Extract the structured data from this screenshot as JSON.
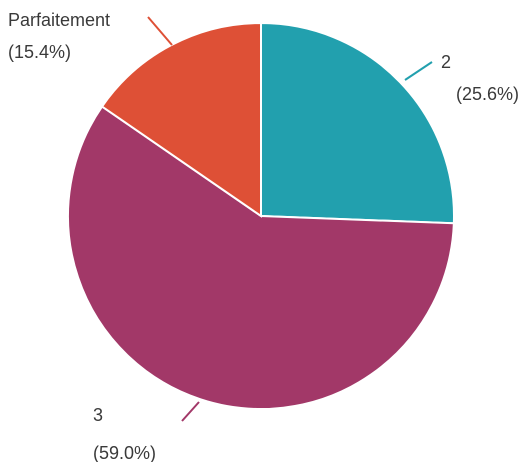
{
  "chart_data": {
    "type": "pie",
    "start_angle_deg": 0,
    "direction": "clockwise",
    "slices": [
      {
        "label": "2",
        "percent_label": "(25.6%)",
        "value": 25.6,
        "color": "#22a0ae"
      },
      {
        "label": "3",
        "percent_label": "(59.0%)",
        "value": 59.0,
        "color": "#a23868"
      },
      {
        "label": "Parfaitement",
        "percent_label": "(15.4%)",
        "value": 15.4,
        "color": "#de5036"
      }
    ],
    "legend": "none",
    "labels": "outside with leader lines"
  }
}
